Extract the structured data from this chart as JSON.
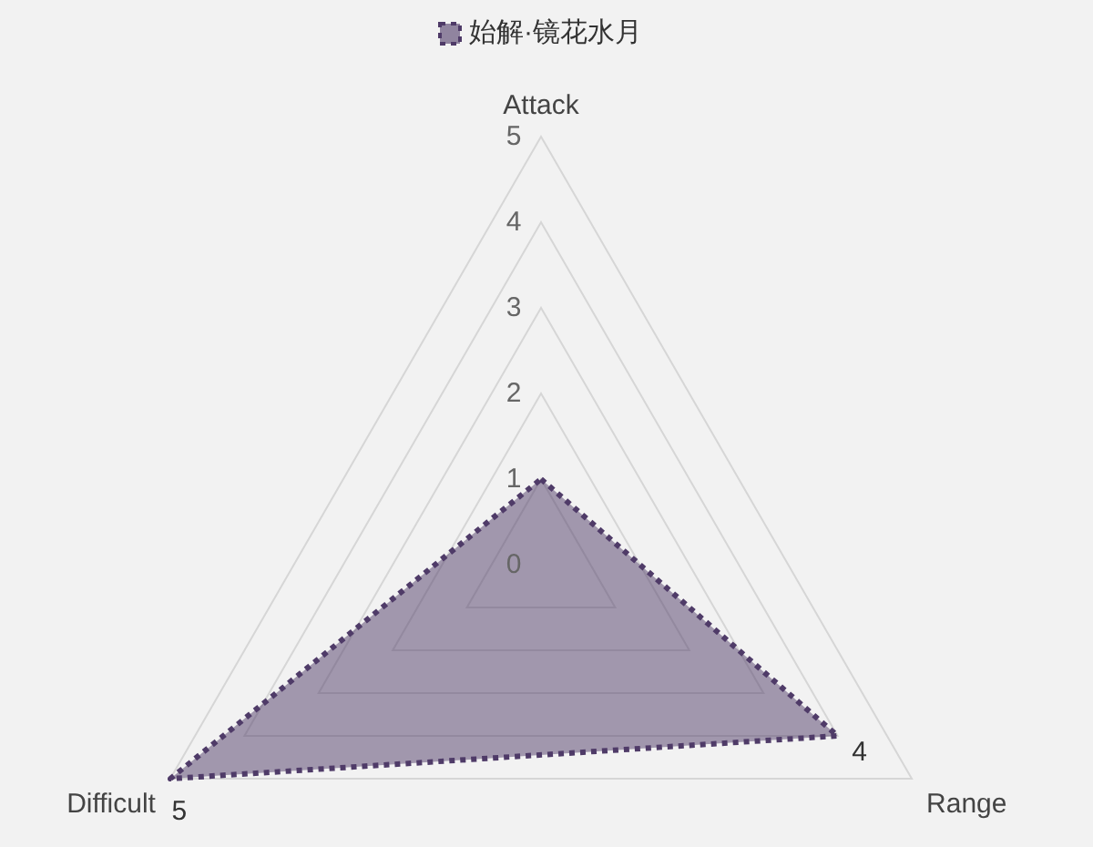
{
  "chart_data": {
    "type": "radar",
    "categories": [
      "Attack",
      "Range",
      "Difficult"
    ],
    "series": [
      {
        "name": "始解·镜花水月",
        "color": "#4f3b68",
        "values": [
          1,
          4,
          5
        ],
        "value_labels": [
          null,
          "4",
          "5"
        ]
      }
    ],
    "ylim": [
      0,
      5
    ],
    "yticks": [
      0,
      1,
      2,
      3,
      4,
      5
    ],
    "grid": true,
    "legend": "top",
    "line_style": "dotted"
  }
}
